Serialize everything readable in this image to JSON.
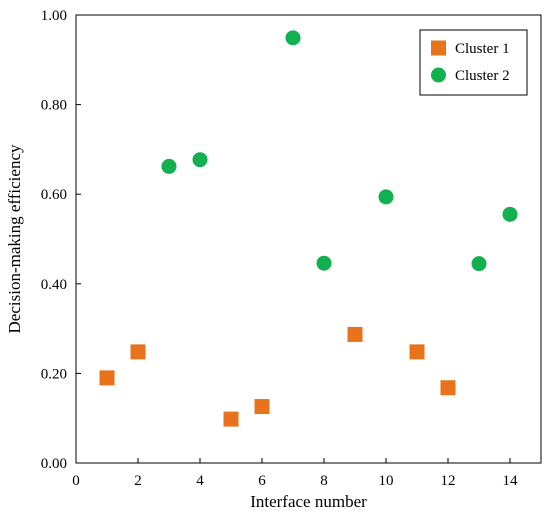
{
  "chart_data": {
    "type": "scatter",
    "xlabel": "Interface number",
    "ylabel": "Decision-making efficiency",
    "xlim": [
      0,
      15
    ],
    "ylim": [
      0,
      1.0
    ],
    "xticks": [
      "0",
      "2",
      "4",
      "6",
      "8",
      "10",
      "12",
      "14"
    ],
    "xtick_values": [
      0,
      2,
      4,
      6,
      8,
      10,
      12,
      14
    ],
    "yticks": [
      "0.00",
      "0.20",
      "0.40",
      "0.60",
      "0.80",
      "1.00"
    ],
    "ytick_values": [
      0,
      0.2,
      0.4,
      0.6,
      0.8,
      1.0
    ],
    "grid": false,
    "legend_position": "top-right",
    "series": [
      {
        "name": "Cluster 1",
        "marker": "square",
        "color": "#E8731C",
        "x": [
          1,
          2,
          5,
          6,
          9,
          11,
          12
        ],
        "y": [
          0.19,
          0.248,
          0.098,
          0.126,
          0.287,
          0.248,
          0.168
        ]
      },
      {
        "name": "Cluster 2",
        "marker": "circle",
        "color": "#13B050",
        "x": [
          3,
          4,
          7,
          8,
          10,
          13,
          14
        ],
        "y": [
          0.662,
          0.677,
          0.949,
          0.446,
          0.594,
          0.445,
          0.555
        ]
      }
    ]
  }
}
